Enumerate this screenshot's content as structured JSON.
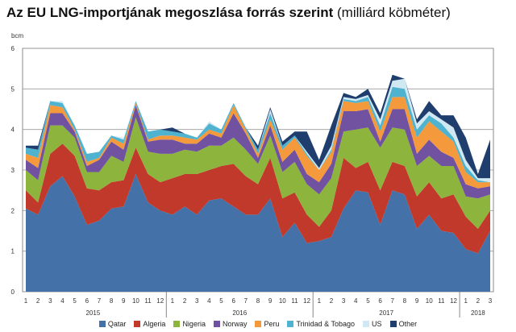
{
  "title": {
    "bold": "Az EU LNG-importjának megoszlása forrás szerint",
    "light": "(milliárd köbméter)"
  },
  "chart_data": {
    "type": "area",
    "stacked": true,
    "unit_label": "bcm",
    "ylim": [
      0,
      6
    ],
    "yticks": [
      0,
      1,
      2,
      3,
      4,
      5,
      6
    ],
    "grid": "horizontal",
    "legend_position": "bottom",
    "month_labels": [
      "1",
      "2",
      "3",
      "4",
      "5",
      "6",
      "7",
      "8",
      "9",
      "10",
      "11",
      "12",
      "1",
      "2",
      "3",
      "4",
      "5",
      "6",
      "7",
      "8",
      "9",
      "10",
      "11",
      "12",
      "1",
      "2",
      "3",
      "4",
      "5",
      "6",
      "7",
      "8",
      "9",
      "10",
      "11",
      "12",
      "1",
      "2",
      "3"
    ],
    "year_groups": [
      {
        "label": "2015",
        "count": 12
      },
      {
        "label": "2016",
        "count": 12
      },
      {
        "label": "2017",
        "count": 12
      },
      {
        "label": "2018",
        "count": 3
      }
    ],
    "series": [
      {
        "name": "Qatar",
        "color": "#4472a8",
        "values": [
          2.05,
          1.9,
          2.6,
          2.85,
          2.35,
          1.65,
          1.75,
          2.05,
          2.1,
          2.9,
          2.2,
          2.0,
          1.9,
          2.1,
          1.9,
          2.25,
          2.3,
          2.1,
          1.9,
          1.9,
          2.3,
          1.35,
          1.7,
          1.2,
          1.25,
          1.35,
          2.05,
          2.5,
          2.45,
          1.65,
          2.5,
          2.4,
          1.55,
          1.9,
          1.5,
          1.45,
          1.05,
          0.95,
          1.5
        ]
      },
      {
        "name": "Algeria",
        "color": "#c0392b",
        "values": [
          0.45,
          0.3,
          0.8,
          0.8,
          1.0,
          0.9,
          0.75,
          0.65,
          0.65,
          0.65,
          0.7,
          0.7,
          0.9,
          0.8,
          1.0,
          0.75,
          0.8,
          1.05,
          0.95,
          0.75,
          1.0,
          0.95,
          0.75,
          0.7,
          0.35,
          0.65,
          1.25,
          0.55,
          0.75,
          0.85,
          0.7,
          0.7,
          0.8,
          0.8,
          0.8,
          0.95,
          0.8,
          0.6,
          0.5
        ]
      },
      {
        "name": "Nigeria",
        "color": "#8db43d",
        "values": [
          0.5,
          0.55,
          0.7,
          0.45,
          0.45,
          0.4,
          0.45,
          0.65,
          0.45,
          0.75,
          0.55,
          0.7,
          0.6,
          0.6,
          0.55,
          0.6,
          0.5,
          0.65,
          0.65,
          0.5,
          0.55,
          0.65,
          0.75,
          0.75,
          0.8,
          0.8,
          0.65,
          0.95,
          0.85,
          1.05,
          0.85,
          0.9,
          0.75,
          0.65,
          0.8,
          0.7,
          0.5,
          0.75,
          0.4
        ]
      },
      {
        "name": "Norway",
        "color": "#7052a0",
        "values": [
          0.25,
          0.3,
          0.3,
          0.3,
          0.15,
          0.15,
          0.3,
          0.35,
          0.3,
          0.3,
          0.25,
          0.35,
          0.35,
          0.15,
          0.2,
          0.3,
          0.2,
          0.6,
          0.4,
          0.15,
          0.25,
          0.25,
          0.3,
          0.25,
          0.3,
          0.35,
          0.5,
          0.45,
          0.45,
          0.15,
          0.45,
          0.5,
          0.3,
          0.4,
          0.35,
          0.2,
          0.3,
          0.25,
          0.2
        ]
      },
      {
        "name": "Peru",
        "color": "#f59a3c",
        "values": [
          0.15,
          0.25,
          0.2,
          0.15,
          0.05,
          0.1,
          0.05,
          0.1,
          0.15,
          0.05,
          0.05,
          0.1,
          0.1,
          0.15,
          0.1,
          0.1,
          0.1,
          0.2,
          0.1,
          0.1,
          0.15,
          0.3,
          0.3,
          0.45,
          0.3,
          0.3,
          0.25,
          0.2,
          0.2,
          0.25,
          0.3,
          0.3,
          0.4,
          0.45,
          0.5,
          0.4,
          0.3,
          0.15,
          0.1
        ]
      },
      {
        "name": "Trinidad & Tobago",
        "color": "#4fb3cf",
        "values": [
          0.15,
          0.2,
          0.1,
          0.1,
          0.1,
          0.2,
          0.15,
          0.05,
          0.1,
          0.05,
          0.2,
          0.15,
          0.1,
          0.1,
          0.05,
          0.15,
          0.1,
          0.05,
          0.05,
          0.1,
          0.15,
          0.1,
          0.05,
          0.05,
          0.0,
          0.05,
          0.05,
          0.05,
          0.1,
          0.15,
          0.25,
          0.2,
          0.2,
          0.15,
          0.2,
          0.1,
          0.15,
          0.05,
          0.0
        ]
      },
      {
        "name": "US",
        "color": "#cfe8f2",
        "values": [
          0.0,
          0.0,
          0.0,
          0.05,
          0.0,
          0.0,
          0.0,
          0.0,
          0.05,
          0.0,
          0.0,
          0.0,
          0.0,
          0.0,
          0.0,
          0.05,
          0.0,
          0.0,
          0.0,
          0.0,
          0.1,
          0.0,
          0.0,
          0.05,
          0.05,
          0.1,
          0.05,
          0.05,
          0.05,
          0.15,
          0.15,
          0.25,
          0.15,
          0.1,
          0.1,
          0.25,
          0.15,
          0.05,
          0.1
        ]
      },
      {
        "name": "Other",
        "color": "#1f3e6e",
        "values": [
          0.05,
          0.1,
          0.0,
          0.0,
          0.0,
          0.0,
          0.0,
          0.0,
          0.0,
          0.0,
          0.0,
          0.0,
          0.1,
          0.0,
          0.0,
          0.0,
          0.0,
          0.0,
          0.0,
          0.1,
          0.05,
          0.1,
          0.1,
          0.5,
          0.2,
          0.5,
          0.1,
          0.05,
          0.15,
          0.15,
          0.15,
          0.0,
          0.1,
          0.25,
          0.1,
          0.3,
          0.55,
          0.1,
          0.95
        ]
      }
    ]
  }
}
